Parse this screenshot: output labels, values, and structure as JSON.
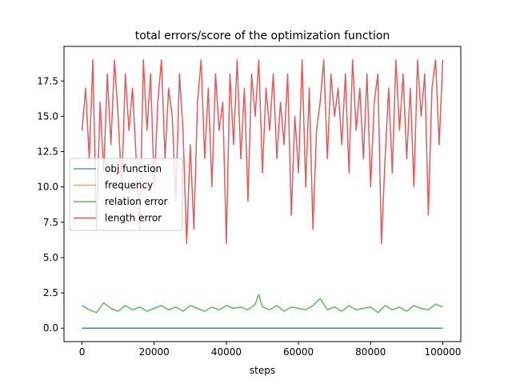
{
  "chart_data": {
    "type": "line",
    "title": "total errors/score of the optimization function",
    "xlabel": "steps",
    "ylabel": "",
    "xlim": [
      -5000,
      105000
    ],
    "ylim": [
      -0.95,
      19.95
    ],
    "xticks": [
      0,
      20000,
      40000,
      60000,
      80000,
      100000
    ],
    "xtick_labels": [
      "0",
      "20000",
      "40000",
      "60000",
      "80000",
      "100000"
    ],
    "yticks": [
      0.0,
      2.5,
      5.0,
      7.5,
      10.0,
      12.5,
      15.0,
      17.5
    ],
    "ytick_labels": [
      "0.0",
      "2.5",
      "5.0",
      "7.5",
      "10.0",
      "12.5",
      "15.0",
      "17.5"
    ],
    "grid": false,
    "legend_position": "center-left",
    "series": [
      {
        "name": "obj function",
        "color": "#1f77b4",
        "x": [
          0,
          100000
        ],
        "y": [
          0.0,
          0.0
        ]
      },
      {
        "name": "frequency",
        "color": "#ff7f0e",
        "x": [
          0,
          100000
        ],
        "y": [
          0.0,
          0.0
        ]
      },
      {
        "name": "relation error",
        "color": "#2ca02c",
        "x": [
          0,
          2000,
          4000,
          6000,
          8000,
          10000,
          12000,
          14000,
          16000,
          18000,
          20000,
          22000,
          24000,
          26000,
          28000,
          30000,
          32000,
          34000,
          36000,
          38000,
          40000,
          42000,
          44000,
          46000,
          48000,
          49000,
          50000,
          52000,
          54000,
          56000,
          58000,
          60000,
          62000,
          64000,
          66000,
          68000,
          70000,
          72000,
          74000,
          76000,
          78000,
          80000,
          82000,
          84000,
          86000,
          88000,
          90000,
          92000,
          94000,
          96000,
          98000,
          100000
        ],
        "y": [
          1.6,
          1.3,
          1.1,
          1.8,
          1.4,
          1.2,
          1.6,
          1.3,
          1.5,
          1.2,
          1.4,
          1.6,
          1.3,
          1.5,
          1.2,
          1.6,
          1.4,
          1.2,
          1.5,
          1.3,
          1.6,
          1.4,
          1.5,
          1.3,
          1.7,
          2.4,
          1.5,
          1.3,
          1.6,
          1.2,
          1.5,
          1.4,
          1.3,
          1.6,
          2.1,
          1.3,
          1.5,
          1.2,
          1.6,
          1.3,
          1.4,
          1.5,
          1.1,
          1.6,
          1.3,
          1.5,
          1.2,
          1.6,
          1.4,
          1.3,
          1.7,
          1.5
        ]
      },
      {
        "name": "length error",
        "color": "#d62728",
        "x": [
          0,
          1000,
          2000,
          3000,
          4000,
          5000,
          6000,
          7000,
          8000,
          9000,
          10000,
          11000,
          12000,
          13000,
          14000,
          15000,
          16000,
          17000,
          18000,
          19000,
          20000,
          21000,
          22000,
          23000,
          24000,
          25000,
          26000,
          27000,
          28000,
          29000,
          30000,
          31000,
          32000,
          33000,
          34000,
          35000,
          36000,
          37000,
          38000,
          39000,
          40000,
          41000,
          42000,
          43000,
          44000,
          45000,
          46000,
          47000,
          48000,
          49000,
          50000,
          51000,
          52000,
          53000,
          54000,
          55000,
          56000,
          57000,
          58000,
          59000,
          60000,
          61000,
          62000,
          63000,
          64000,
          65000,
          66000,
          67000,
          68000,
          69000,
          70000,
          71000,
          72000,
          73000,
          74000,
          75000,
          76000,
          77000,
          78000,
          79000,
          80000,
          81000,
          82000,
          83000,
          84000,
          85000,
          86000,
          87000,
          88000,
          89000,
          90000,
          91000,
          92000,
          93000,
          94000,
          95000,
          96000,
          97000,
          98000,
          99000,
          100000
        ],
        "y": [
          14,
          17,
          12,
          19,
          7,
          16,
          11,
          18,
          13,
          19,
          15,
          10,
          18,
          14,
          17,
          12,
          7,
          19,
          14,
          18,
          10,
          16,
          19,
          12,
          17,
          15,
          9,
          18,
          14,
          6,
          13,
          7,
          16,
          19,
          12,
          17,
          10,
          18,
          14,
          16,
          6,
          18,
          13,
          19,
          12,
          17,
          9,
          18,
          15,
          19,
          11,
          17,
          14,
          18,
          12,
          16,
          13,
          18,
          8,
          15,
          11,
          19,
          10,
          17,
          7,
          14,
          16,
          19,
          12,
          18,
          15,
          17,
          13,
          18,
          11,
          19,
          14,
          17,
          12,
          18,
          10,
          16,
          18,
          6,
          12,
          17,
          11,
          19,
          14,
          18,
          12,
          17,
          10,
          19,
          15,
          18,
          8,
          17,
          19,
          13,
          19
        ]
      }
    ]
  }
}
